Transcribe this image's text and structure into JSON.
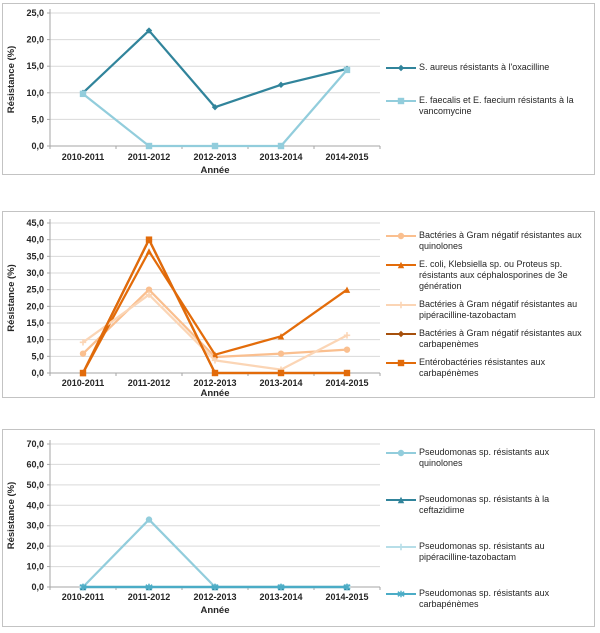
{
  "page": {
    "language": "fr",
    "y_axis_title": "Résistance (%)",
    "x_axis_title": "Année"
  },
  "chart_data": [
    {
      "type": "line",
      "title": "",
      "xlabel": "Année",
      "ylabel": "Résistance (%)",
      "categories": [
        "2010-2011",
        "2011-2012",
        "2012-2013",
        "2013-2014",
        "2014-2015"
      ],
      "ylim": [
        0,
        25
      ],
      "ystep": 5,
      "grid": true,
      "legend_position": "right",
      "series": [
        {
          "name": "S. aureus résistants à l'oxacilline",
          "color": "#31849B",
          "marker": "diamond",
          "values": [
            10.0,
            21.7,
            7.3,
            11.5,
            14.5
          ]
        },
        {
          "name": "E. faecalis et E. faecium résistants à la vancomycine",
          "color": "#92CDDC",
          "marker": "square",
          "values": [
            9.8,
            0.0,
            0.0,
            0.0,
            14.3
          ]
        }
      ]
    },
    {
      "type": "line",
      "title": "",
      "xlabel": "Année",
      "ylabel": "Résistance (%)",
      "categories": [
        "2010-2011",
        "2011-2012",
        "2012-2013",
        "2013-2014",
        "2014-2015"
      ],
      "ylim": [
        0,
        45
      ],
      "ystep": 5,
      "grid": true,
      "legend_position": "right",
      "series": [
        {
          "name": "Bactéries à Gram négatif résistantes aux quinolones",
          "color": "#FABF8F",
          "marker": "circle",
          "values": [
            5.8,
            25.0,
            4.8,
            5.8,
            7.0
          ]
        },
        {
          "name": "E. coli, Klebsiella sp. ou Proteus sp. résistants aux céphalosporines de 3e génération",
          "color": "#E36C0A",
          "marker": "triangle",
          "values": [
            0.0,
            36.5,
            5.5,
            11.0,
            25.0
          ]
        },
        {
          "name": "Bactéries à Gram négatif résistantes au pipéracilline-tazobactam",
          "color": "#FBD5B5",
          "marker": "plus",
          "values": [
            9.2,
            23.5,
            3.8,
            1.0,
            11.3
          ]
        },
        {
          "name": "Bactéries à Gram négatif résistantes aux carbapenèmes",
          "color": "#A6500C",
          "marker": "diamond",
          "values": [
            0.0,
            40.0,
            0.0,
            0.0,
            0.0
          ]
        },
        {
          "name": "Entérobactéries résistantes aux carbapénèmes",
          "color": "#E26B0A",
          "marker": "square",
          "values": [
            0.0,
            40.0,
            0.0,
            0.0,
            0.0
          ]
        }
      ]
    },
    {
      "type": "line",
      "title": "",
      "xlabel": "Année",
      "ylabel": "Résistance (%)",
      "categories": [
        "2010-2011",
        "2011-2012",
        "2012-2013",
        "2013-2014",
        "2014-2015"
      ],
      "ylim": [
        0,
        70
      ],
      "ystep": 10,
      "grid": true,
      "legend_position": "right",
      "series": [
        {
          "name": "Pseudomonas sp. résistants aux quinolones",
          "color": "#92CDDC",
          "marker": "circle",
          "values": [
            0.0,
            33.0,
            0.0,
            0.0,
            0.0
          ]
        },
        {
          "name": "Pseudomonas sp. résistants à la ceftazidime",
          "color": "#31849B",
          "marker": "triangle",
          "values": [
            0.0,
            0.0,
            0.0,
            0.0,
            0.0
          ]
        },
        {
          "name": "Pseudomonas sp. résistants au pipéracilline-tazobactam",
          "color": "#B7DEE8",
          "marker": "plus",
          "values": [
            0.0,
            0.0,
            0.0,
            0.0,
            0.0
          ]
        },
        {
          "name": "Pseudomonas sp. résistants aux carbapénèmes",
          "color": "#4BACC6",
          "marker": "asterisk",
          "values": [
            0.0,
            0.0,
            0.0,
            0.0,
            0.0
          ]
        }
      ]
    }
  ],
  "style": {
    "gridline_color": "#D9D9D9",
    "axis_color": "#A6A6A6",
    "text_color": "#262626",
    "panel_border_color": "#C3C3C3"
  }
}
